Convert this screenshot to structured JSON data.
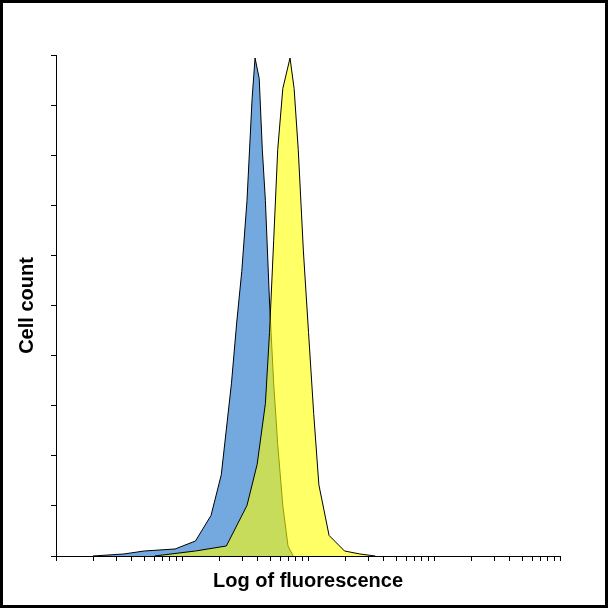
{
  "chart_data": {
    "type": "area",
    "xlabel": "Log of fluorescence",
    "ylabel": "Cell count",
    "log": "x",
    "xlim": [
      1,
      10000
    ],
    "xticks": [
      1,
      2,
      3,
      4,
      5,
      6,
      7,
      8,
      9,
      10,
      20,
      30,
      40,
      50,
      60,
      70,
      80,
      90,
      100,
      200,
      300,
      400,
      500,
      600,
      700,
      800,
      900,
      1000,
      2000,
      3000,
      4000,
      5000,
      6000,
      7000,
      8000,
      9000,
      10000
    ],
    "ylim": [
      0,
      100
    ],
    "yticks": [
      0,
      10,
      20,
      30,
      40,
      50,
      60,
      70,
      80,
      90,
      100
    ],
    "grid": false,
    "tick_labels": false,
    "series": [
      {
        "color": "#74a9e0",
        "x": [
          1.96,
          3.45,
          5.02,
          8.81,
          12.8,
          17.0,
          20.5,
          24.7,
          27.2,
          29.8,
          32.8,
          36.0,
          38.0,
          41.0,
          43.4,
          45.9,
          49.5,
          53.4,
          57.5,
          63.1,
          69.4,
          76.2
        ],
        "values": [
          0,
          0.4,
          1.0,
          1.4,
          3.0,
          8.1,
          16.2,
          34.5,
          46.7,
          56.8,
          71.0,
          91.3,
          99.4,
          95.3,
          81.1,
          71.0,
          50.7,
          34.5,
          22.3,
          10.1,
          2.0,
          0
        ]
      },
      {
        "color": "#ffff00",
        "x": [
          6.05,
          12.8,
          22.5,
          32.8,
          39.5,
          45.9,
          49.5,
          53.4,
          57.5,
          63.1,
          72.0,
          77.6,
          83.7,
          91.9,
          101,
          111,
          122,
          147,
          195,
          258,
          342
        ],
        "values": [
          0,
          1.0,
          2.0,
          10.1,
          18.3,
          30.4,
          44.6,
          62.9,
          81.1,
          93.3,
          99.4,
          93.3,
          81.1,
          60.9,
          44.6,
          28.4,
          14.2,
          4.1,
          1.0,
          0.4,
          0
        ]
      }
    ]
  }
}
